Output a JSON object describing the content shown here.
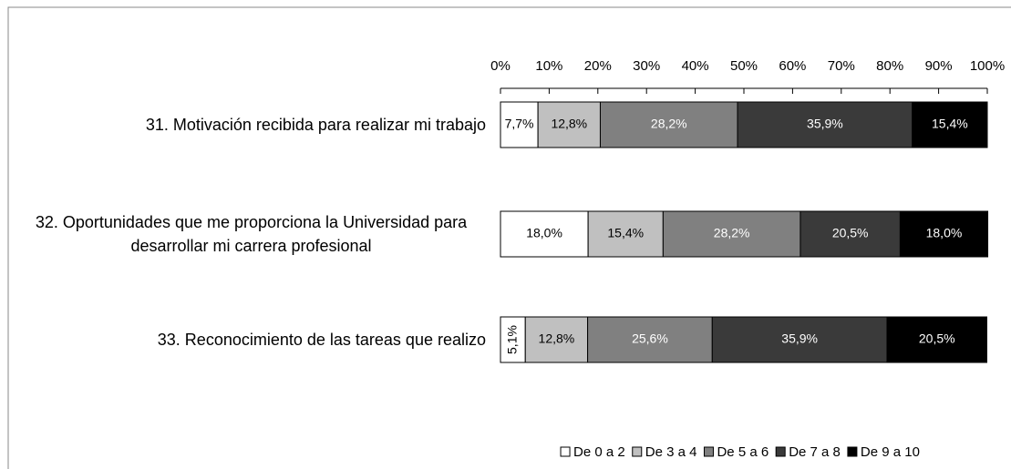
{
  "chart_data": {
    "type": "stacked_bar_horizontal",
    "categories": [
      "31. Motivación recibida para realizar mi trabajo",
      "32. Oportunidades que me proporciona la Universidad para desarrollar mi carrera profesional",
      "33. Reconocimiento de las tareas que realizo"
    ],
    "series": [
      {
        "name": "De 0 a 2",
        "color": "#ffffff",
        "values": [
          7.7,
          18.0,
          5.1
        ],
        "value_labels": [
          "7,7%",
          "18,0%",
          "5,1%"
        ]
      },
      {
        "name": "De 3 a 4",
        "color": "#c0c0c0",
        "values": [
          12.8,
          15.4,
          12.8
        ],
        "value_labels": [
          "12,8%",
          "15,4%",
          "12,8%"
        ]
      },
      {
        "name": "De 5 a 6",
        "color": "#808080",
        "values": [
          28.2,
          28.2,
          25.6
        ],
        "value_labels": [
          "28,2%",
          "28,2%",
          "25,6%"
        ]
      },
      {
        "name": "De 7 a 8",
        "color": "#3a3a3a",
        "values": [
          35.9,
          20.5,
          35.9
        ],
        "value_labels": [
          "35,9%",
          "20,5%",
          "35,9%"
        ]
      },
      {
        "name": "De 9 a 10",
        "color": "#000000",
        "values": [
          15.4,
          18.0,
          20.5
        ],
        "value_labels": [
          "15,4%",
          "18,0%",
          "20,5%"
        ]
      }
    ],
    "xlim": [
      0,
      100
    ],
    "xticks": [
      {
        "value": 0,
        "label": "0%"
      },
      {
        "value": 10,
        "label": "10%"
      },
      {
        "value": 20,
        "label": "20%"
      },
      {
        "value": 30,
        "label": "30%"
      },
      {
        "value": 40,
        "label": "40%"
      },
      {
        "value": 50,
        "label": "50%"
      },
      {
        "value": 60,
        "label": "60%"
      },
      {
        "value": 70,
        "label": "70%"
      },
      {
        "value": 80,
        "label": "80%"
      },
      {
        "value": 90,
        "label": "90%"
      },
      {
        "value": 100,
        "label": "100%"
      }
    ],
    "legend": "bottom"
  }
}
